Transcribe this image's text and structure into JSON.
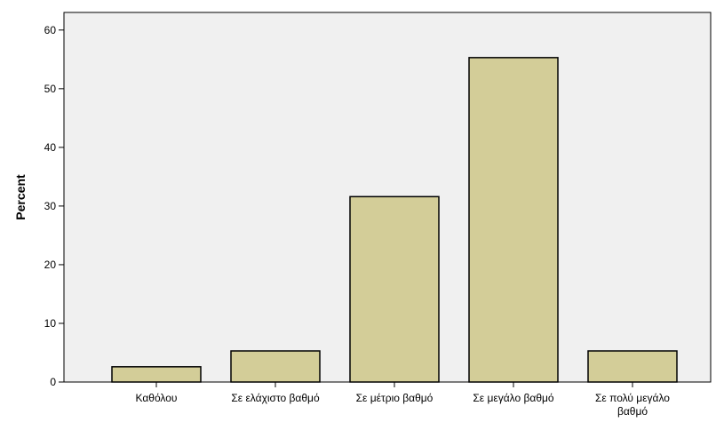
{
  "chart_data": {
    "type": "bar",
    "title": "",
    "xlabel": "",
    "ylabel": "Percent",
    "ylim": [
      0,
      63
    ],
    "yticks": [
      0,
      10,
      20,
      30,
      40,
      50,
      60
    ],
    "grid": false,
    "categories": [
      [
        "Καθόλου"
      ],
      [
        "Σε ελάχιστο βαθμό"
      ],
      [
        "Σε μέτριο βαθμό"
      ],
      [
        "Σε μεγάλο βαθμό"
      ],
      [
        "Σε πολύ μεγάλο",
        "βαθμό"
      ]
    ],
    "values": [
      2.6,
      5.3,
      31.6,
      55.3,
      5.3
    ],
    "colors": {
      "bar_fill": "#d3cd98",
      "bar_stroke": "#000000",
      "plot_background": "#f0f0f0",
      "axis": "#000000"
    }
  }
}
